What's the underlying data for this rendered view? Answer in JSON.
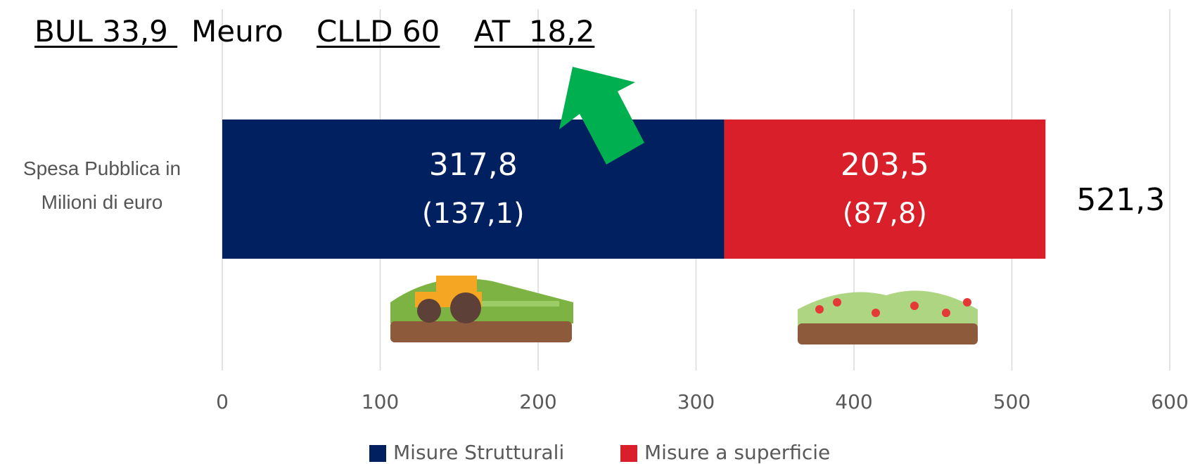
{
  "chart_data": {
    "type": "stacked-bar-horizontal",
    "annotations": [
      "BUL 33,9 ",
      "Meuro",
      "CLLD 60",
      "AT  18,2"
    ],
    "categories": [
      "Spesa Pubblica in Milioni di euro"
    ],
    "series": [
      {
        "name": "Misure Strutturali",
        "color": "#002060",
        "values": [
          317.8
        ],
        "value_labels": [
          "317,8"
        ],
        "sub_labels": [
          "(137,1)"
        ]
      },
      {
        "name": "Misure a superficie",
        "color": "#d9202a",
        "values": [
          203.5
        ],
        "value_labels": [
          "203,5"
        ],
        "sub_labels": [
          "(87,8)"
        ]
      }
    ],
    "total": 521.3,
    "total_label": "521,3",
    "xlim": [
      0,
      600
    ],
    "xticks": [
      0,
      100,
      200,
      300,
      400,
      500,
      600
    ],
    "grid": true
  }
}
